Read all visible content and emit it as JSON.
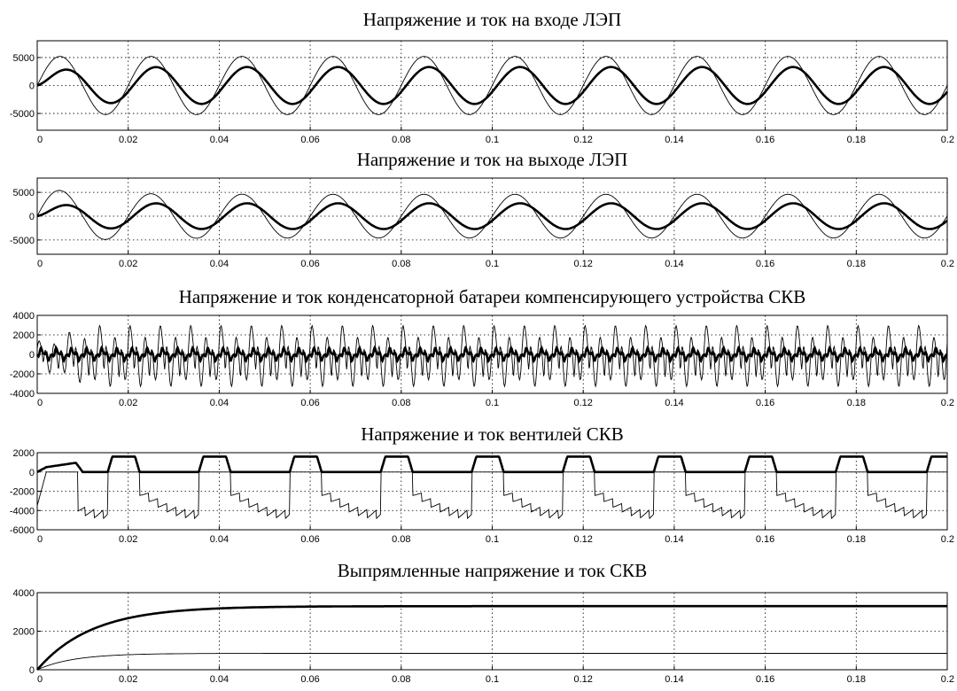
{
  "chart_data": [
    {
      "type": "line",
      "title": "Напряжение и ток на входе ЛЭП",
      "xlim": [
        0,
        0.2
      ],
      "ylim": [
        -8000,
        8000
      ],
      "xticks": [
        "0",
        "0.02",
        "0.04",
        "0.06",
        "0.08",
        "0.1",
        "0.12",
        "0.14",
        "0.16",
        "0.18",
        "0.2"
      ],
      "yticks": [
        {
          "value": 5000,
          "label": "5000"
        },
        {
          "value": 0,
          "label": "0"
        },
        {
          "value": -5000,
          "label": "-5000"
        }
      ],
      "grid": true,
      "series": [
        {
          "style": "thin",
          "kind": "sine",
          "amplitude": 5200,
          "freq_hz": 50,
          "phase_deg": 0,
          "note": "voltage"
        },
        {
          "style": "thick",
          "kind": "sine_transient",
          "amplitude": 3300,
          "freq_hz": 50,
          "phase_deg": -20,
          "note": "current"
        }
      ]
    },
    {
      "type": "line",
      "title": "Напряжение и ток на выходе ЛЭП",
      "xlim": [
        0,
        0.2
      ],
      "ylim": [
        -8000,
        8000
      ],
      "xticks": [
        "0",
        "0.02",
        "0.04",
        "0.06",
        "0.08",
        "0.1",
        "0.12",
        "0.14",
        "0.16",
        "0.18",
        "0.2"
      ],
      "yticks": [
        {
          "value": 5000,
          "label": "5000"
        },
        {
          "value": 0,
          "label": "0"
        },
        {
          "value": -5000,
          "label": "-5000"
        }
      ],
      "grid": true,
      "series": [
        {
          "style": "thin",
          "kind": "sine",
          "amplitude": 4600,
          "freq_hz": 50,
          "phase_deg": 0,
          "initial_peak": 5800
        },
        {
          "style": "thick",
          "kind": "sine_transient",
          "amplitude": 2700,
          "freq_hz": 50,
          "phase_deg": -20
        }
      ]
    },
    {
      "type": "line",
      "title": "Напряжение и ток  конденсаторной батареи компенсирующего устройства СКВ",
      "xlim": [
        0,
        0.2
      ],
      "ylim": [
        -4000,
        4000
      ],
      "xticks": [
        "0",
        "0.02",
        "0.04",
        "0.06",
        "0.08",
        "0.1",
        "0.12",
        "0.14",
        "0.16",
        "0.18",
        "0.2"
      ],
      "yticks": [
        {
          "value": 4000,
          "label": "4000"
        },
        {
          "value": 2000,
          "label": "2000"
        },
        {
          "value": 0,
          "label": "0"
        },
        {
          "value": -2000,
          "label": "-2000"
        },
        {
          "value": -4000,
          "label": "-4000"
        }
      ],
      "grid": true,
      "series": [
        {
          "style": "thin",
          "kind": "distorted_oscillation",
          "peak": 3700,
          "period_s": 0.02
        },
        {
          "style": "thick",
          "kind": "small_oscillation",
          "peak": 700,
          "period_s": 0.02
        }
      ]
    },
    {
      "type": "line",
      "title": "Напряжение и ток вентилей СКВ",
      "xlim": [
        0,
        0.2
      ],
      "ylim": [
        -6000,
        2000
      ],
      "xticks": [
        "0",
        "0.02",
        "0.04",
        "0.06",
        "0.08",
        "0.1",
        "0.12",
        "0.14",
        "0.16",
        "0.18",
        "0.2"
      ],
      "yticks": [
        {
          "value": 2000,
          "label": "2000"
        },
        {
          "value": 0,
          "label": "0"
        },
        {
          "value": -2000,
          "label": "-2000"
        },
        {
          "value": -4000,
          "label": "-4000"
        },
        {
          "value": -6000,
          "label": "-6000"
        }
      ],
      "grid": true,
      "series": [
        {
          "style": "thick",
          "kind": "pulse_train",
          "pulse_level": 1600,
          "period_s": 0.02
        },
        {
          "style": "thin",
          "kind": "blocking_voltage",
          "min_level": -5500,
          "period_s": 0.02
        }
      ]
    },
    {
      "type": "line",
      "title": "Выпрямленные напряжение и ток СКВ",
      "xlim": [
        0,
        0.2
      ],
      "ylim": [
        0,
        4000
      ],
      "xticks": [
        "0",
        "0.02",
        "0.04",
        "0.06",
        "0.08",
        "0.1",
        "0.12",
        "0.14",
        "0.16",
        "0.18",
        "0.2"
      ],
      "yticks": [
        {
          "value": 4000,
          "label": "4000"
        },
        {
          "value": 2000,
          "label": "2000"
        },
        {
          "value": 0,
          "label": "0"
        }
      ],
      "grid": true,
      "series": [
        {
          "style": "thick",
          "kind": "exp_rise",
          "final": 3300,
          "start": 0,
          "tau_s": 0.012
        },
        {
          "style": "thin",
          "kind": "exp_rise",
          "final": 850,
          "start": 0,
          "tau_s": 0.008
        }
      ]
    }
  ]
}
